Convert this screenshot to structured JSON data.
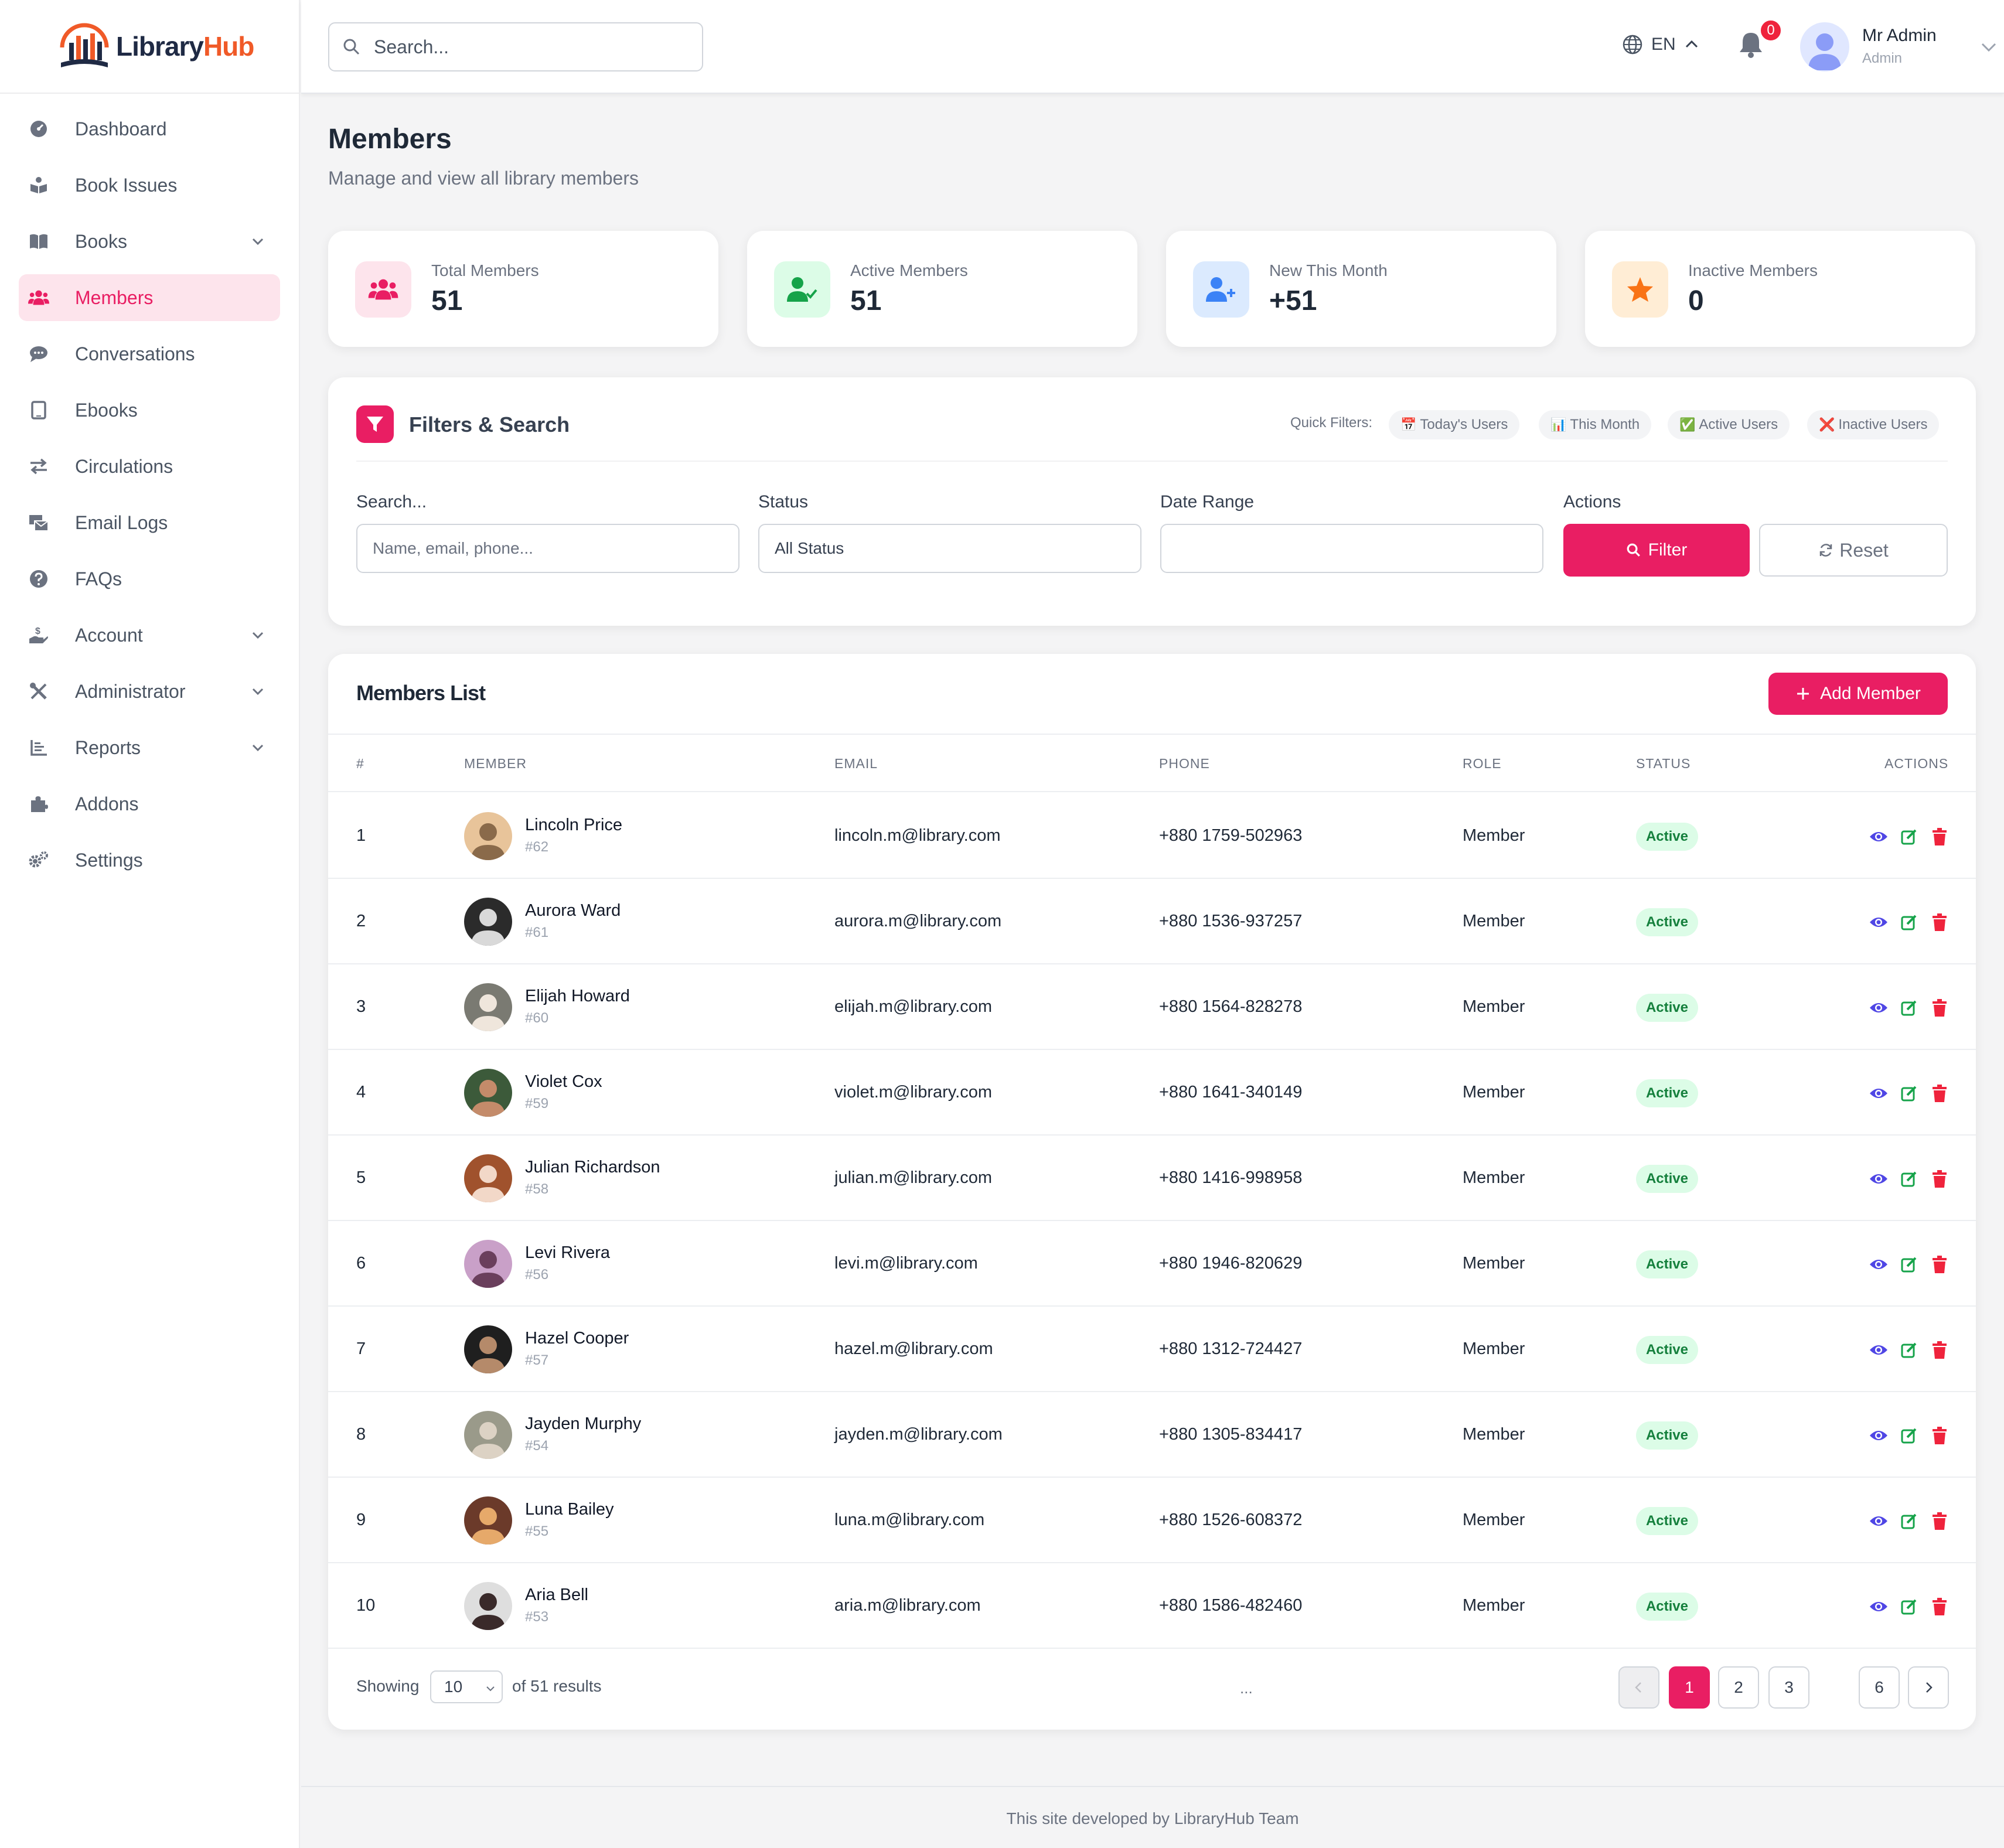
{
  "app": {
    "logo_a": "Library",
    "logo_b": "Hub"
  },
  "sidebar": {
    "items": [
      {
        "label": "Dashboard"
      },
      {
        "label": "Book Issues"
      },
      {
        "label": "Books"
      },
      {
        "label": "Members"
      },
      {
        "label": "Conversations"
      },
      {
        "label": "Ebooks"
      },
      {
        "label": "Circulations"
      },
      {
        "label": "Email Logs"
      },
      {
        "label": "FAQs"
      },
      {
        "label": "Account"
      },
      {
        "label": "Administrator"
      },
      {
        "label": "Reports"
      },
      {
        "label": "Addons"
      },
      {
        "label": "Settings"
      }
    ]
  },
  "topbar": {
    "search_placeholder": "Search...",
    "language": "EN",
    "notification_count": "0",
    "user_name": "Mr Admin",
    "user_role": "Admin"
  },
  "page": {
    "title": "Members",
    "subtitle": "Manage and view all library members"
  },
  "stats": [
    {
      "label": "Total Members",
      "value": "51"
    },
    {
      "label": "Active Members",
      "value": "51"
    },
    {
      "label": "New This Month",
      "value": "+51"
    },
    {
      "label": "Inactive Members",
      "value": "0"
    }
  ],
  "filters": {
    "title": "Filters & Search",
    "quick_label": "Quick Filters:",
    "quick": [
      {
        "icon": "📅",
        "label": "Today's Users"
      },
      {
        "icon": "📊",
        "label": "This Month"
      },
      {
        "icon": "✅",
        "label": "Active Users"
      },
      {
        "icon": "❌",
        "label": "Inactive Users"
      }
    ],
    "search_label": "Search...",
    "search_placeholder": "Name, email, phone...",
    "status_label": "Status",
    "status_value": "All Status",
    "date_label": "Date Range",
    "date_value": "",
    "actions_label": "Actions",
    "filter_button": "Filter",
    "reset_button": "Reset"
  },
  "members": {
    "title": "Members List",
    "add_button": "Add Member",
    "columns": [
      "#",
      "MEMBER",
      "EMAIL",
      "PHONE",
      "ROLE",
      "STATUS",
      "ACTIONS"
    ],
    "rows": [
      {
        "n": "1",
        "name": "Lincoln Price",
        "id": "#62",
        "email": "lincoln.m@library.com",
        "phone": "+880 1759-502963",
        "role": "Member",
        "status": "Active"
      },
      {
        "n": "2",
        "name": "Aurora Ward",
        "id": "#61",
        "email": "aurora.m@library.com",
        "phone": "+880 1536-937257",
        "role": "Member",
        "status": "Active"
      },
      {
        "n": "3",
        "name": "Elijah Howard",
        "id": "#60",
        "email": "elijah.m@library.com",
        "phone": "+880 1564-828278",
        "role": "Member",
        "status": "Active"
      },
      {
        "n": "4",
        "name": "Violet Cox",
        "id": "#59",
        "email": "violet.m@library.com",
        "phone": "+880 1641-340149",
        "role": "Member",
        "status": "Active"
      },
      {
        "n": "5",
        "name": "Julian Richardson",
        "id": "#58",
        "email": "julian.m@library.com",
        "phone": "+880 1416-998958",
        "role": "Member",
        "status": "Active"
      },
      {
        "n": "6",
        "name": "Levi Rivera",
        "id": "#56",
        "email": "levi.m@library.com",
        "phone": "+880 1946-820629",
        "role": "Member",
        "status": "Active"
      },
      {
        "n": "7",
        "name": "Hazel Cooper",
        "id": "#57",
        "email": "hazel.m@library.com",
        "phone": "+880 1312-724427",
        "role": "Member",
        "status": "Active"
      },
      {
        "n": "8",
        "name": "Jayden Murphy",
        "id": "#54",
        "email": "jayden.m@library.com",
        "phone": "+880 1305-834417",
        "role": "Member",
        "status": "Active"
      },
      {
        "n": "9",
        "name": "Luna Bailey",
        "id": "#55",
        "email": "luna.m@library.com",
        "phone": "+880 1526-608372",
        "role": "Member",
        "status": "Active"
      },
      {
        "n": "10",
        "name": "Aria Bell",
        "id": "#53",
        "email": "aria.m@library.com",
        "phone": "+880 1586-482460",
        "role": "Member",
        "status": "Active"
      }
    ]
  },
  "pagination": {
    "showing": "Showing",
    "per_page": "10",
    "of_results": "of 51 results",
    "pages": [
      "1",
      "2",
      "3",
      "6"
    ],
    "ellipsis": "..."
  },
  "footer": {
    "text": "This site developed by LibraryHub Team"
  }
}
